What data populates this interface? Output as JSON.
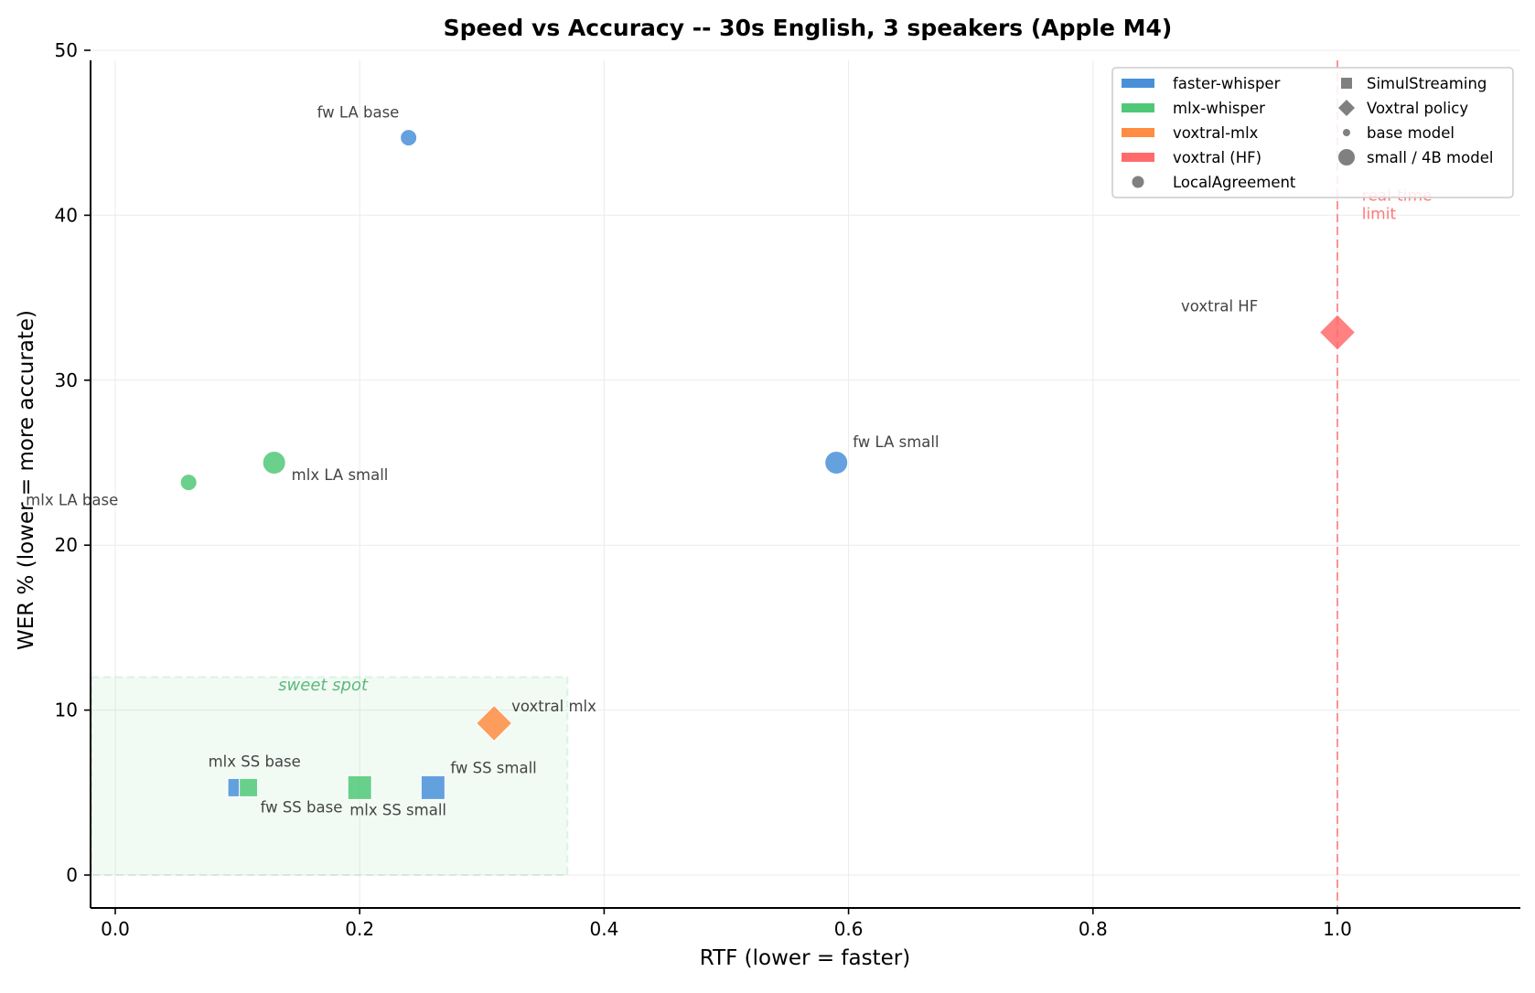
{
  "chart_data": {
    "type": "scatter",
    "title": "Speed vs Accuracy -- 30s English, 3 speakers (Apple M4)",
    "xlabel": "RTF (lower = faster)",
    "ylabel": "WER % (lower = more accurate)",
    "xlim": [
      -0.02,
      1.15
    ],
    "ylim": [
      -2,
      50
    ],
    "x_ticks": [
      0.0,
      0.2,
      0.4,
      0.6,
      0.8,
      1.0
    ],
    "x_tick_labels": [
      "0.0",
      "0.2",
      "0.4",
      "0.6",
      "0.8",
      "1.0"
    ],
    "y_ticks": [
      0,
      10,
      20,
      30,
      40,
      50
    ],
    "y_tick_labels": [
      "0",
      "10",
      "20",
      "30",
      "40",
      "50"
    ],
    "grid": true,
    "legend_position": "upper right",
    "colors": {
      "faster-whisper": "#4a90d9",
      "mlx-whisper": "#50c878",
      "voxtral-mlx": "#ff8c42",
      "voxtral (HF)": "#ff6b6b"
    },
    "series": [
      {
        "label": "fw LA base",
        "backend": "faster-whisper",
        "policy": "LocalAgreement",
        "model": "base",
        "x": 0.24,
        "y": 44.7,
        "label_dx": -100,
        "label_dy": -22
      },
      {
        "label": "fw LA small",
        "backend": "faster-whisper",
        "policy": "LocalAgreement",
        "model": "small",
        "x": 0.59,
        "y": 25.0,
        "label_dx": 18,
        "label_dy": -17
      },
      {
        "label": "mlx LA base",
        "backend": "mlx-whisper",
        "policy": "LocalAgreement",
        "model": "base",
        "x": 0.06,
        "y": 23.8,
        "label_dx": -178,
        "label_dy": 25
      },
      {
        "label": "mlx LA small",
        "backend": "mlx-whisper",
        "policy": "LocalAgreement",
        "model": "small",
        "x": 0.13,
        "y": 25.0,
        "label_dx": 19,
        "label_dy": 19
      },
      {
        "label": "fw SS base",
        "backend": "faster-whisper",
        "policy": "SimulStreaming",
        "model": "base",
        "x": 0.097,
        "y": 5.3,
        "label_dx": 29,
        "label_dy": 27
      },
      {
        "label": "mlx SS base",
        "backend": "mlx-whisper",
        "policy": "SimulStreaming",
        "model": "base",
        "x": 0.109,
        "y": 5.3,
        "label_dx": -44,
        "label_dy": -23
      },
      {
        "label": "mlx SS small",
        "backend": "mlx-whisper",
        "policy": "SimulStreaming",
        "model": "small",
        "x": 0.2,
        "y": 5.3,
        "label_dx": -11,
        "label_dy": 30
      },
      {
        "label": "fw SS small",
        "backend": "faster-whisper",
        "policy": "SimulStreaming",
        "model": "small",
        "x": 0.26,
        "y": 5.3,
        "label_dx": 19,
        "label_dy": -16
      },
      {
        "label": "voxtral mlx",
        "backend": "voxtral-mlx",
        "policy": "Voxtral policy",
        "model": "4B",
        "x": 0.31,
        "y": 9.2,
        "label_dx": 19,
        "label_dy": -13
      },
      {
        "label": "voxtral HF",
        "backend": "voxtral (HF)",
        "policy": "Voxtral policy",
        "model": "4B",
        "x": 1.0,
        "y": 32.9,
        "label_dx": -171,
        "label_dy": -23
      }
    ],
    "annotations": [
      {
        "text": "sweet spot",
        "x": 0.17,
        "y": 11.2
      },
      {
        "text": "real-time\nlimit",
        "x": 1.02,
        "y": 41
      }
    ],
    "regions": [
      {
        "name": "sweet spot",
        "x0": -0.02,
        "x1": 0.37,
        "y0": 0,
        "y1": 12,
        "color": "#50c878"
      }
    ],
    "reference_lines": [
      {
        "name": "real-time limit",
        "orientation": "vertical",
        "x": 1.0,
        "color": "#ff6b6b",
        "style": "dashed"
      }
    ],
    "legend": {
      "column1": [
        {
          "label": "faster-whisper",
          "kind": "patch",
          "color": "#4a90d9"
        },
        {
          "label": "mlx-whisper",
          "kind": "patch",
          "color": "#50c878"
        },
        {
          "label": "voxtral-mlx",
          "kind": "patch",
          "color": "#ff8c42"
        },
        {
          "label": "voxtral (HF)",
          "kind": "patch",
          "color": "#ff6b6b"
        },
        {
          "label": "LocalAgreement",
          "kind": "circle",
          "color": "#808080"
        }
      ],
      "column2": [
        {
          "label": "SimulStreaming",
          "kind": "square",
          "color": "#808080"
        },
        {
          "label": "Voxtral policy",
          "kind": "diamond",
          "color": "#808080"
        },
        {
          "label": "base model",
          "kind": "small-dot",
          "color": "#808080"
        },
        {
          "label": "small / 4B model",
          "kind": "big-dot",
          "color": "#808080"
        }
      ]
    }
  }
}
